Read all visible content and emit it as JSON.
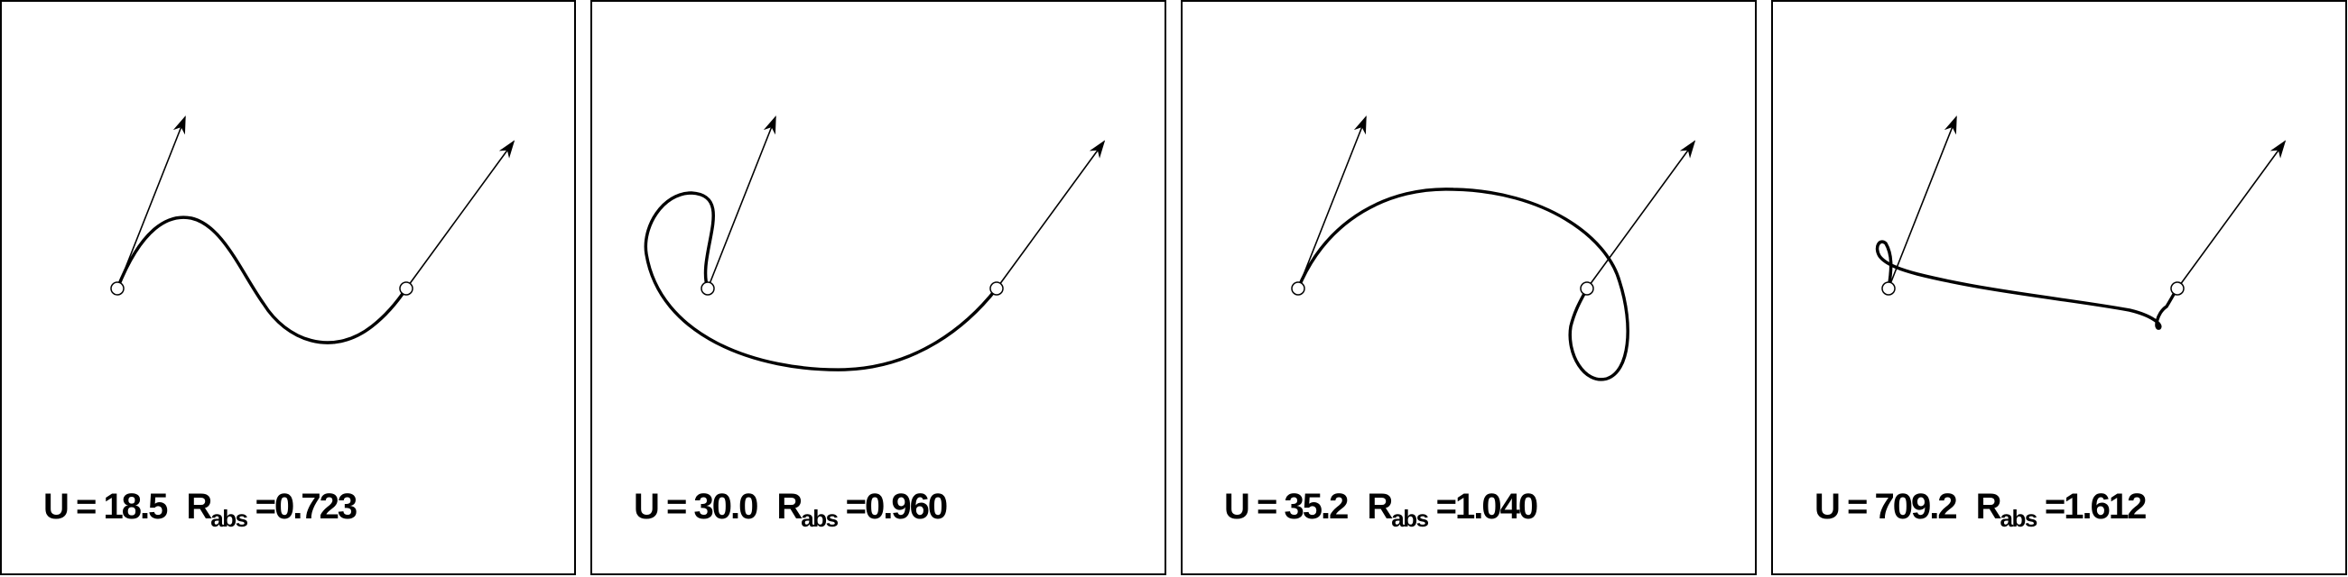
{
  "panels": [
    {
      "u_label": "U =",
      "u_value": "18.5",
      "r_label": "R",
      "r_sub": "abs",
      "r_eq": "=",
      "r_value": "0.723"
    },
    {
      "u_label": "U =",
      "u_value": "30.0",
      "r_label": "R",
      "r_sub": "abs",
      "r_eq": "=",
      "r_value": "0.960"
    },
    {
      "u_label": "U =",
      "u_value": "35.2",
      "r_label": "R",
      "r_sub": "abs",
      "r_eq": "=",
      "r_value": "1.040"
    },
    {
      "u_label": "U =",
      "u_value": "709.2",
      "r_label": "R",
      "r_sub": "abs",
      "r_eq": "=",
      "r_value": "1.612"
    }
  ],
  "colors": {
    "stroke": "#000000",
    "background": "#ffffff"
  }
}
